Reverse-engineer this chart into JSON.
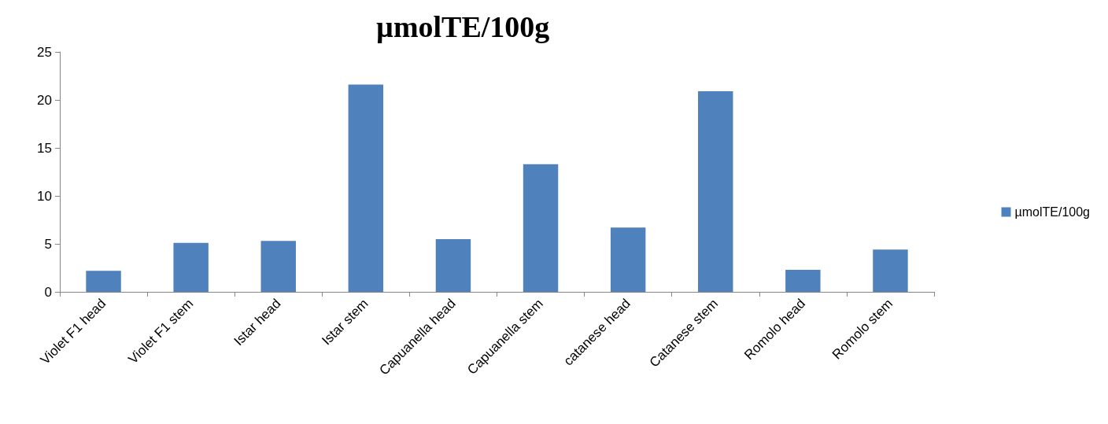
{
  "chart_data": {
    "type": "bar",
    "title": "µmolTE/100g",
    "categories": [
      "Violet F1 head",
      "Violet F1 stem",
      "Istar head",
      "Istar stem",
      "Capuanella head",
      "Capuanella stem",
      "catanese head",
      "Catanese stem",
      "Romolo head",
      "Romolo stem"
    ],
    "series": [
      {
        "name": "µmolTE/100g",
        "color": "#4f81bd",
        "values": [
          2.2,
          5.1,
          5.3,
          21.6,
          5.5,
          13.3,
          6.7,
          20.9,
          2.3,
          4.4
        ]
      }
    ],
    "ylim": [
      0,
      25
    ],
    "yticks": [
      0,
      5,
      10,
      15,
      20,
      25
    ],
    "grid": false,
    "legend": "right"
  }
}
